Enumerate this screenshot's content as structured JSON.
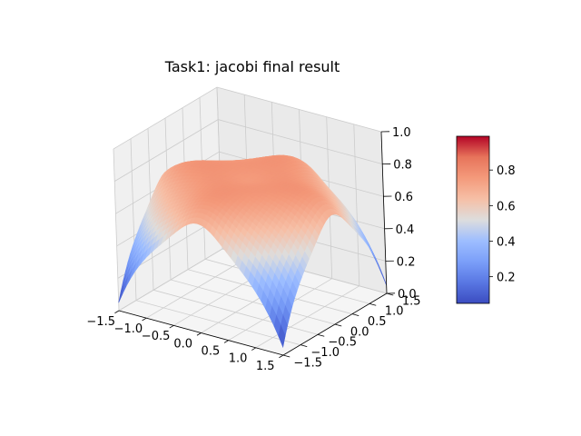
{
  "chart_data": {
    "type": "surface3d",
    "title": "Task1: jacobi final result",
    "xlabel": "",
    "ylabel": "",
    "zlabel": "",
    "xlim": [
      -1.5,
      1.5
    ],
    "ylim": [
      -1.5,
      1.5
    ],
    "zlim": [
      0.0,
      1.0
    ],
    "x_ticks": [
      "−1.5",
      "−1.0",
      "−0.5",
      "0.0",
      "0.5",
      "1.0",
      "1.5"
    ],
    "y_ticks": [
      "−1.5",
      "−1.0",
      "−0.5",
      "0.0",
      "0.5",
      "1.0",
      "1.5"
    ],
    "z_ticks": [
      "0.0",
      "0.2",
      "0.4",
      "0.6",
      "0.8",
      "1.0"
    ],
    "colormap": "coolwarm",
    "grid": true,
    "surface_extrema": {
      "corner_min": 0.05,
      "edge_peak_max": 0.99,
      "center_value": 0.75
    },
    "colorbar": {
      "range": [
        0.05,
        0.99
      ],
      "ticks": [
        "0.2",
        "0.4",
        "0.6",
        "0.8"
      ]
    }
  }
}
